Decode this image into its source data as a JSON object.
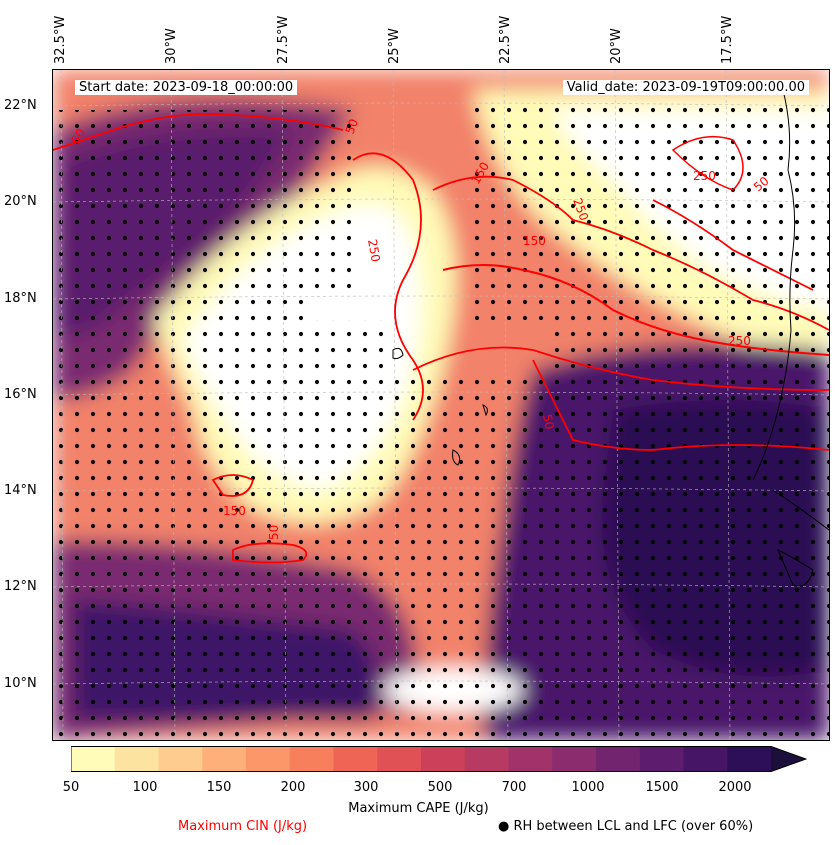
{
  "map": {
    "start_date": "Start date: 2023-09-18_00:00:00",
    "valid_date": "Valid_date: 2023-09-19T09:00:00.00",
    "longitude_labels": [
      "32.5°W",
      "30°W",
      "27.5°W",
      "25°W",
      "22.5°W",
      "20°W",
      "17.5°W"
    ],
    "latitude_labels": [
      "22°N",
      "20°N",
      "18°N",
      "16°N",
      "14°N",
      "12°N",
      "10°N"
    ],
    "contour_labels": [
      "50",
      "50",
      "150",
      "250",
      "50",
      "250",
      "250",
      "250",
      "150",
      "50",
      "150",
      "50"
    ]
  },
  "colorbar": {
    "tick_labels": [
      "50",
      "100",
      "150",
      "200",
      "300",
      "500",
      "700",
      "1000",
      "1500",
      "2000"
    ],
    "colors": [
      "#fffbb8",
      "#fde3a0",
      "#fecc8e",
      "#feb07a",
      "#fb9769",
      "#f77f5c",
      "#ee6556",
      "#df5155",
      "#cc4059",
      "#b63a61",
      "#a1336a",
      "#8a2c6e",
      "#73246f",
      "#5d1c6d",
      "#461566",
      "#2d0f57",
      "#1c0f3b"
    ],
    "title": "Maximum CAPE (J/kg)"
  },
  "legend": {
    "cin_label": "Maximum CIN (J/kg)",
    "rh_label": "● RH between LCL and LFC (over 60%)"
  }
}
